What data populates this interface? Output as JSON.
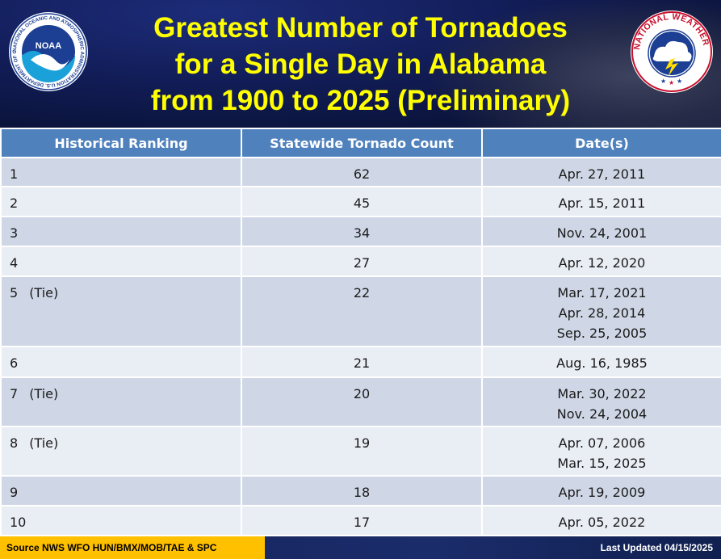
{
  "header": {
    "title_lines": [
      "Greatest Number of Tornadoes",
      "for a Single Day in Alabama",
      "from 1900 to 2025 (Preliminary)"
    ],
    "noaa_logo": {
      "icon": "noaa-logo-icon",
      "ring_text": "NATIONAL OCEANIC AND ATMOSPHERIC ADMINISTRATION U.S. DEPARTMENT OF COMMERCE",
      "center_text": "NOAA"
    },
    "nws_logo": {
      "icon": "nws-logo-icon",
      "ring_text": "NATIONAL WEATHER SERVICE"
    }
  },
  "table": {
    "columns": [
      "Historical Ranking",
      "Statewide Tornado Count",
      "Date(s)"
    ],
    "rows": [
      {
        "rank": "1",
        "tie": "",
        "count": "62",
        "dates": [
          "Apr. 27, 2011"
        ]
      },
      {
        "rank": "2",
        "tie": "",
        "count": "45",
        "dates": [
          "Apr. 15, 2011"
        ]
      },
      {
        "rank": "3",
        "tie": "",
        "count": "34",
        "dates": [
          "Nov. 24, 2001"
        ]
      },
      {
        "rank": "4",
        "tie": "",
        "count": "27",
        "dates": [
          "Apr. 12, 2020"
        ]
      },
      {
        "rank": "5",
        "tie": "(Tie)",
        "count": "22",
        "dates": [
          "Mar. 17, 2021",
          "Apr. 28, 2014",
          "Sep. 25, 2005"
        ]
      },
      {
        "rank": "6",
        "tie": "",
        "count": "21",
        "dates": [
          "Aug. 16, 1985"
        ]
      },
      {
        "rank": "7",
        "tie": "(Tie)",
        "count": "20",
        "dates": [
          "Mar. 30, 2022",
          "Nov. 24, 2004"
        ]
      },
      {
        "rank": "8",
        "tie": "(Tie)",
        "count": "19",
        "dates": [
          "Apr. 07, 2006",
          "Mar. 15, 2025"
        ]
      },
      {
        "rank": "9",
        "tie": "",
        "count": "18",
        "dates": [
          "Apr. 19, 2009"
        ]
      },
      {
        "rank": "10",
        "tie": "",
        "count": "17",
        "dates": [
          "Apr. 05, 2022"
        ]
      }
    ]
  },
  "footer": {
    "source": "Source NWS WFO HUN/BMX/MOB/TAE & SPC",
    "updated": "Last Updated 04/15/2025"
  },
  "colors": {
    "title": "#ffff00",
    "header_row": "#4f81bd",
    "row_odd": "#cfd7e6",
    "row_even": "#e9edf4",
    "source_bg": "#ffc000"
  }
}
